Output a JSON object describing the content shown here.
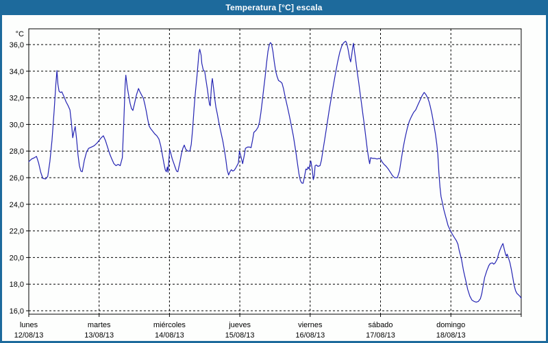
{
  "window": {
    "title": "Temperatura [°C] escala",
    "titlebar_color": "#1d6a9c",
    "plot_background": "#fdfefd"
  },
  "chart_data": {
    "type": "line",
    "title": "Temperatura [°C] escala",
    "unit_label": "°C",
    "line_color": "#2222b2",
    "axis_color": "#000000",
    "grid": "dashed",
    "legend": "none",
    "ylim": [
      16,
      36
    ],
    "y_tick_step": 2,
    "y_tick_labels": [
      "36,0",
      "34,0",
      "32,0",
      "30,0",
      "28,0",
      "26,0",
      "24,0",
      "22,0",
      "20,0",
      "18,0",
      "16,0"
    ],
    "x_days": [
      {
        "name": "lunes",
        "date": "12/08/13"
      },
      {
        "name": "martes",
        "date": "13/08/13"
      },
      {
        "name": "miércoles",
        "date": "14/08/13"
      },
      {
        "name": "jueves",
        "date": "15/08/13"
      },
      {
        "name": "viernes",
        "date": "16/08/13"
      },
      {
        "name": "sábado",
        "date": "17/08/13"
      },
      {
        "name": "domingo",
        "date": "18/08/13"
      }
    ],
    "series": [
      {
        "name": "Temperatura",
        "points": [
          [
            0.0,
            27.2
          ],
          [
            0.04,
            27.4
          ],
          [
            0.08,
            27.5
          ],
          [
            0.11,
            27.6
          ],
          [
            0.14,
            27.1
          ],
          [
            0.17,
            26.4
          ],
          [
            0.2,
            25.95
          ],
          [
            0.24,
            25.9
          ],
          [
            0.27,
            26.1
          ],
          [
            0.3,
            27.2
          ],
          [
            0.33,
            28.8
          ],
          [
            0.36,
            31.0
          ],
          [
            0.385,
            33.0
          ],
          [
            0.4,
            34.05
          ],
          [
            0.415,
            33.0
          ],
          [
            0.43,
            32.5
          ],
          [
            0.45,
            32.4
          ],
          [
            0.47,
            32.45
          ],
          [
            0.5,
            32.1
          ],
          [
            0.53,
            31.7
          ],
          [
            0.56,
            31.4
          ],
          [
            0.585,
            31.1
          ],
          [
            0.605,
            30.2
          ],
          [
            0.625,
            29.0
          ],
          [
            0.64,
            29.4
          ],
          [
            0.66,
            29.85
          ],
          [
            0.68,
            28.9
          ],
          [
            0.7,
            27.7
          ],
          [
            0.72,
            26.9
          ],
          [
            0.74,
            26.5
          ],
          [
            0.76,
            26.45
          ],
          [
            0.79,
            27.3
          ],
          [
            0.82,
            27.9
          ],
          [
            0.85,
            28.2
          ],
          [
            0.89,
            28.3
          ],
          [
            0.93,
            28.4
          ],
          [
            0.97,
            28.6
          ],
          [
            1.0,
            28.8
          ],
          [
            1.03,
            29.0
          ],
          [
            1.06,
            29.15
          ],
          [
            1.09,
            28.8
          ],
          [
            1.12,
            28.3
          ],
          [
            1.15,
            27.8
          ],
          [
            1.18,
            27.4
          ],
          [
            1.21,
            27.05
          ],
          [
            1.24,
            26.9
          ],
          [
            1.27,
            27.0
          ],
          [
            1.3,
            26.9
          ],
          [
            1.33,
            27.5
          ],
          [
            1.35,
            30.0
          ],
          [
            1.37,
            33.0
          ],
          [
            1.38,
            33.7
          ],
          [
            1.4,
            32.8
          ],
          [
            1.42,
            32.2
          ],
          [
            1.44,
            31.6
          ],
          [
            1.46,
            31.2
          ],
          [
            1.48,
            31.05
          ],
          [
            1.5,
            31.5
          ],
          [
            1.53,
            32.2
          ],
          [
            1.56,
            32.7
          ],
          [
            1.58,
            32.45
          ],
          [
            1.61,
            32.15
          ],
          [
            1.63,
            31.95
          ],
          [
            1.65,
            31.5
          ],
          [
            1.67,
            31.0
          ],
          [
            1.69,
            30.4
          ],
          [
            1.71,
            29.9
          ],
          [
            1.73,
            29.7
          ],
          [
            1.76,
            29.5
          ],
          [
            1.79,
            29.3
          ],
          [
            1.82,
            29.15
          ],
          [
            1.85,
            28.9
          ],
          [
            1.875,
            28.4
          ],
          [
            1.9,
            27.7
          ],
          [
            1.92,
            27.1
          ],
          [
            1.94,
            26.6
          ],
          [
            1.955,
            26.45
          ],
          [
            1.97,
            26.8
          ],
          [
            1.98,
            26.4
          ],
          [
            1.995,
            27.6
          ],
          [
            2.005,
            28.1
          ],
          [
            2.02,
            27.8
          ],
          [
            2.04,
            27.4
          ],
          [
            2.06,
            27.1
          ],
          [
            2.08,
            26.8
          ],
          [
            2.1,
            26.5
          ],
          [
            2.12,
            26.45
          ],
          [
            2.15,
            27.2
          ],
          [
            2.17,
            27.8
          ],
          [
            2.19,
            28.2
          ],
          [
            2.21,
            28.45
          ],
          [
            2.23,
            28.15
          ],
          [
            2.26,
            28.0
          ],
          [
            2.29,
            28.0
          ],
          [
            2.31,
            28.5
          ],
          [
            2.33,
            29.7
          ],
          [
            2.35,
            31.2
          ],
          [
            2.37,
            32.5
          ],
          [
            2.39,
            33.6
          ],
          [
            2.41,
            34.8
          ],
          [
            2.42,
            35.4
          ],
          [
            2.43,
            35.65
          ],
          [
            2.45,
            35.2
          ],
          [
            2.46,
            34.6
          ],
          [
            2.48,
            34.1
          ],
          [
            2.5,
            34.0
          ],
          [
            2.52,
            33.3
          ],
          [
            2.54,
            32.6
          ],
          [
            2.555,
            32.0
          ],
          [
            2.57,
            31.5
          ],
          [
            2.58,
            31.4
          ],
          [
            2.59,
            32.3
          ],
          [
            2.6,
            33.1
          ],
          [
            2.61,
            33.45
          ],
          [
            2.63,
            32.6
          ],
          [
            2.645,
            31.9
          ],
          [
            2.66,
            31.3
          ],
          [
            2.68,
            30.8
          ],
          [
            2.7,
            30.2
          ],
          [
            2.72,
            29.7
          ],
          [
            2.74,
            29.2
          ],
          [
            2.76,
            28.7
          ],
          [
            2.78,
            28.1
          ],
          [
            2.8,
            27.4
          ],
          [
            2.82,
            26.6
          ],
          [
            2.84,
            26.2
          ],
          [
            2.86,
            26.45
          ],
          [
            2.88,
            26.6
          ],
          [
            2.9,
            26.5
          ],
          [
            2.92,
            26.55
          ],
          [
            2.94,
            26.7
          ],
          [
            2.96,
            26.9
          ],
          [
            2.98,
            27.1
          ],
          [
            2.995,
            28.0
          ],
          [
            3.02,
            27.5
          ],
          [
            3.04,
            27.05
          ],
          [
            3.06,
            27.6
          ],
          [
            3.08,
            28.2
          ],
          [
            3.11,
            28.3
          ],
          [
            3.14,
            28.3
          ],
          [
            3.16,
            28.25
          ],
          [
            3.18,
            28.8
          ],
          [
            3.2,
            29.4
          ],
          [
            3.23,
            29.55
          ],
          [
            3.26,
            29.8
          ],
          [
            3.28,
            30.2
          ],
          [
            3.3,
            30.9
          ],
          [
            3.32,
            31.8
          ],
          [
            3.34,
            32.7
          ],
          [
            3.36,
            33.6
          ],
          [
            3.38,
            34.6
          ],
          [
            3.4,
            35.5
          ],
          [
            3.42,
            36.0
          ],
          [
            3.435,
            36.15
          ],
          [
            3.45,
            36.05
          ],
          [
            3.47,
            35.5
          ],
          [
            3.49,
            34.7
          ],
          [
            3.51,
            34.0
          ],
          [
            3.53,
            33.6
          ],
          [
            3.55,
            33.3
          ],
          [
            3.58,
            33.2
          ],
          [
            3.6,
            33.1
          ],
          [
            3.62,
            32.7
          ],
          [
            3.64,
            32.2
          ],
          [
            3.66,
            31.7
          ],
          [
            3.68,
            31.25
          ],
          [
            3.7,
            30.75
          ],
          [
            3.72,
            30.25
          ],
          [
            3.74,
            29.7
          ],
          [
            3.76,
            29.15
          ],
          [
            3.78,
            28.5
          ],
          [
            3.8,
            27.8
          ],
          [
            3.82,
            27.05
          ],
          [
            3.84,
            26.3
          ],
          [
            3.86,
            25.8
          ],
          [
            3.88,
            25.6
          ],
          [
            3.9,
            25.58
          ],
          [
            3.92,
            26.1
          ],
          [
            3.94,
            26.65
          ],
          [
            3.955,
            26.6
          ],
          [
            3.97,
            26.8
          ],
          [
            3.985,
            26.65
          ],
          [
            4.0,
            27.1
          ],
          [
            4.01,
            27.25
          ],
          [
            4.03,
            26.6
          ],
          [
            4.045,
            25.85
          ],
          [
            4.06,
            26.2
          ],
          [
            4.07,
            26.9
          ],
          [
            4.09,
            26.95
          ],
          [
            4.11,
            26.85
          ],
          [
            4.14,
            26.9
          ],
          [
            4.16,
            27.3
          ],
          [
            4.18,
            28.0
          ],
          [
            4.21,
            29.0
          ],
          [
            4.24,
            30.0
          ],
          [
            4.27,
            31.05
          ],
          [
            4.3,
            32.0
          ],
          [
            4.33,
            32.95
          ],
          [
            4.36,
            33.85
          ],
          [
            4.39,
            34.7
          ],
          [
            4.42,
            35.4
          ],
          [
            4.45,
            35.9
          ],
          [
            4.47,
            36.1
          ],
          [
            4.49,
            36.2
          ],
          [
            4.505,
            36.25
          ],
          [
            4.52,
            36.1
          ],
          [
            4.54,
            35.6
          ],
          [
            4.56,
            35.0
          ],
          [
            4.575,
            34.7
          ],
          [
            4.59,
            35.2
          ],
          [
            4.605,
            35.8
          ],
          [
            4.615,
            36.1
          ],
          [
            4.63,
            35.5
          ],
          [
            4.65,
            34.7
          ],
          [
            4.67,
            33.9
          ],
          [
            4.69,
            33.15
          ],
          [
            4.71,
            32.35
          ],
          [
            4.73,
            31.55
          ],
          [
            4.75,
            30.75
          ],
          [
            4.77,
            29.95
          ],
          [
            4.79,
            29.1
          ],
          [
            4.81,
            28.2
          ],
          [
            4.83,
            27.5
          ],
          [
            4.845,
            27.05
          ],
          [
            4.86,
            27.5
          ],
          [
            4.89,
            27.45
          ],
          [
            4.92,
            27.45
          ],
          [
            4.95,
            27.4
          ],
          [
            4.98,
            27.45
          ],
          [
            5.0,
            27.4
          ],
          [
            5.02,
            27.2
          ],
          [
            5.05,
            27.0
          ],
          [
            5.08,
            26.85
          ],
          [
            5.11,
            26.65
          ],
          [
            5.14,
            26.4
          ],
          [
            5.17,
            26.15
          ],
          [
            5.2,
            26.0
          ],
          [
            5.24,
            26.0
          ],
          [
            5.27,
            26.5
          ],
          [
            5.29,
            27.2
          ],
          [
            5.32,
            28.2
          ],
          [
            5.35,
            29.0
          ],
          [
            5.38,
            29.7
          ],
          [
            5.41,
            30.25
          ],
          [
            5.44,
            30.6
          ],
          [
            5.47,
            30.9
          ],
          [
            5.5,
            31.1
          ],
          [
            5.53,
            31.45
          ],
          [
            5.56,
            31.8
          ],
          [
            5.59,
            32.15
          ],
          [
            5.62,
            32.4
          ],
          [
            5.645,
            32.25
          ],
          [
            5.67,
            32.0
          ],
          [
            5.69,
            31.7
          ],
          [
            5.71,
            31.3
          ],
          [
            5.73,
            30.8
          ],
          [
            5.755,
            30.1
          ],
          [
            5.78,
            29.3
          ],
          [
            5.8,
            28.5
          ],
          [
            5.815,
            27.7
          ],
          [
            5.83,
            26.4
          ],
          [
            5.845,
            25.3
          ],
          [
            5.86,
            24.6
          ],
          [
            5.88,
            24.1
          ],
          [
            5.9,
            23.6
          ],
          [
            5.93,
            23.0
          ],
          [
            5.96,
            22.4
          ],
          [
            5.99,
            22.05
          ],
          [
            6.02,
            21.75
          ],
          [
            6.05,
            21.5
          ],
          [
            6.08,
            21.25
          ],
          [
            6.1,
            21.0
          ],
          [
            6.12,
            20.5
          ],
          [
            6.15,
            19.9
          ],
          [
            6.18,
            19.0
          ],
          [
            6.21,
            18.3
          ],
          [
            6.24,
            17.6
          ],
          [
            6.27,
            17.1
          ],
          [
            6.3,
            16.8
          ],
          [
            6.33,
            16.7
          ],
          [
            6.36,
            16.65
          ],
          [
            6.39,
            16.7
          ],
          [
            6.42,
            16.9
          ],
          [
            6.44,
            17.3
          ],
          [
            6.46,
            17.9
          ],
          [
            6.48,
            18.5
          ],
          [
            6.51,
            19.0
          ],
          [
            6.54,
            19.4
          ],
          [
            6.56,
            19.55
          ],
          [
            6.59,
            19.6
          ],
          [
            6.61,
            19.5
          ],
          [
            6.63,
            19.6
          ],
          [
            6.66,
            19.9
          ],
          [
            6.68,
            20.3
          ],
          [
            6.7,
            20.6
          ],
          [
            6.72,
            20.85
          ],
          [
            6.74,
            21.05
          ],
          [
            6.76,
            20.6
          ],
          [
            6.78,
            20.2
          ],
          [
            6.79,
            20.1
          ],
          [
            6.8,
            20.25
          ],
          [
            6.82,
            19.95
          ],
          [
            6.84,
            19.6
          ],
          [
            6.86,
            19.1
          ],
          [
            6.88,
            18.5
          ],
          [
            6.9,
            17.9
          ],
          [
            6.92,
            17.5
          ],
          [
            6.94,
            17.3
          ],
          [
            6.96,
            17.2
          ],
          [
            6.98,
            17.1
          ],
          [
            7.0,
            16.95
          ]
        ]
      }
    ]
  }
}
